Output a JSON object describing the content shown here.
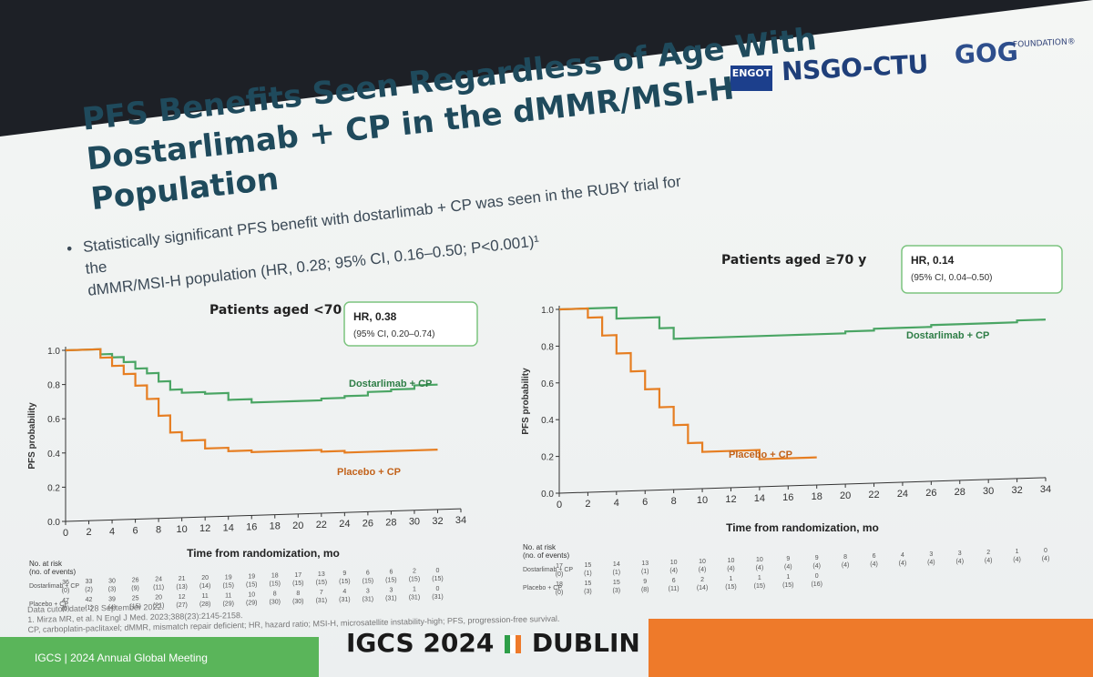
{
  "slide": {
    "title_line1": "PFS Benefits Seen Regardless of Age With",
    "title_line2": "Dostarlimab + CP in the dMMR/MSI-H Population",
    "bullet_line1": "Statistically significant PFS benefit with dostarlimab + CP was seen in the RUBY trial for the",
    "bullet_line2": "dMMR/MSI-H population (HR, 0.28; 95% CI, 0.16–0.50; P<0.001)¹",
    "logos": {
      "engot": "ENGOT",
      "nsgo": "NSGO-CTU",
      "gog": "GOG",
      "gog_sub": "FOUNDATION®"
    },
    "footnotes": [
      "Data cutoff date: 28 September 2022.",
      "1. Mirza MR, et al. N Engl J Med. 2023;388(23):2145-2158.",
      "CP, carboplatin-paclitaxel; dMMR, mismatch repair deficient; HR, hazard ratio; MSI-H, microsatellite instability-high; PFS, progression-free survival."
    ],
    "footer_left": "IGCS | 2024 Annual Global Meeting",
    "footer_mid": "IGCS 2024",
    "footer_mid2": "DUBLIN",
    "colors": {
      "dostarlimab": "#4aa564",
      "placebo": "#e67e22",
      "title": "#1f4a5c",
      "hr_box": "#7cc47f"
    }
  },
  "chart_data": [
    {
      "type": "line",
      "title": "Patients aged <70 y",
      "xlabel": "Time from randomization, mo",
      "ylabel": "PFS probability",
      "xlim": [
        0,
        34
      ],
      "ylim": [
        0,
        1.0
      ],
      "x_ticks": [
        "0",
        "2",
        "4",
        "6",
        "8",
        "10",
        "12",
        "14",
        "16",
        "18",
        "20",
        "22",
        "24",
        "26",
        "28",
        "30",
        "32",
        "34"
      ],
      "y_ticks": [
        "0.0",
        "0.2",
        "0.4",
        "0.6",
        "0.8",
        "1.0"
      ],
      "hr_text": "HR, 0.38",
      "ci_text": "(95% CI, 0.20–0.74)",
      "series": [
        {
          "name": "Dostarlimab + CP",
          "x": [
            0,
            2,
            3,
            4,
            5,
            6,
            7,
            8,
            9,
            10,
            12,
            14,
            16,
            18,
            20,
            22,
            24,
            26,
            28,
            30,
            32
          ],
          "y": [
            1.0,
            1.0,
            0.97,
            0.95,
            0.92,
            0.88,
            0.85,
            0.8,
            0.75,
            0.73,
            0.72,
            0.68,
            0.66,
            0.66,
            0.66,
            0.67,
            0.68,
            0.7,
            0.71,
            0.73,
            0.73
          ]
        },
        {
          "name": "Placebo + CP",
          "x": [
            0,
            2,
            3,
            4,
            5,
            6,
            7,
            8,
            9,
            10,
            12,
            14,
            16,
            18,
            20,
            22,
            24,
            26,
            28,
            30,
            32
          ],
          "y": [
            1.0,
            1.0,
            0.95,
            0.9,
            0.85,
            0.78,
            0.7,
            0.6,
            0.5,
            0.45,
            0.4,
            0.38,
            0.37,
            0.37,
            0.37,
            0.36,
            0.35,
            0.35,
            0.35,
            0.35,
            0.35
          ]
        }
      ],
      "risk_table": {
        "header1": "No. at risk",
        "header2": "(no. of events)",
        "rows": [
          {
            "name": "Dostarlimab + CP",
            "counts": [
              "36",
              "33",
              "30",
              "26",
              "24",
              "21",
              "20",
              "19",
              "19",
              "18",
              "17",
              "13",
              "9",
              "6",
              "6",
              "2",
              "0"
            ],
            "events": [
              "(0)",
              "(2)",
              "(3)",
              "(9)",
              "(11)",
              "(13)",
              "(14)",
              "(15)",
              "(15)",
              "(15)",
              "(15)",
              "(15)",
              "(15)",
              "(15)",
              "(15)",
              "(15)",
              "(15)"
            ]
          },
          {
            "name": "Placebo + CP",
            "counts": [
              "47",
              "42",
              "39",
              "25",
              "20",
              "12",
              "11",
              "11",
              "10",
              "8",
              "8",
              "7",
              "4",
              "3",
              "3",
              "1",
              "0"
            ],
            "events": [
              "(0)",
              "(1)",
              "(4)",
              "(15)",
              "(21)",
              "(27)",
              "(28)",
              "(29)",
              "(29)",
              "(30)",
              "(30)",
              "(31)",
              "(31)",
              "(31)",
              "(31)",
              "(31)",
              "(31)"
            ]
          }
        ]
      }
    },
    {
      "type": "line",
      "title": "Patients aged ≥70 y",
      "xlabel": "Time from randomization, mo",
      "ylabel": "PFS probability",
      "xlim": [
        0,
        34
      ],
      "ylim": [
        0,
        1.0
      ],
      "x_ticks": [
        "0",
        "2",
        "4",
        "6",
        "8",
        "10",
        "12",
        "14",
        "16",
        "18",
        "20",
        "22",
        "24",
        "26",
        "28",
        "30",
        "32",
        "34"
      ],
      "y_ticks": [
        "0.0",
        "0.2",
        "0.4",
        "0.6",
        "0.8",
        "1.0"
      ],
      "hr_text": "HR, 0.14",
      "ci_text": "(95% CI, 0.04–0.50)",
      "series": [
        {
          "name": "Dostarlimab + CP",
          "x": [
            0,
            2,
            4,
            6,
            7,
            8,
            10,
            12,
            14,
            16,
            18,
            20,
            22,
            24,
            26,
            28,
            30,
            32,
            34
          ],
          "y": [
            1.0,
            1.0,
            0.94,
            0.94,
            0.88,
            0.82,
            0.82,
            0.82,
            0.82,
            0.82,
            0.82,
            0.83,
            0.84,
            0.84,
            0.85,
            0.85,
            0.85,
            0.86,
            0.86
          ]
        },
        {
          "name": "Placebo + CP",
          "x": [
            0,
            2,
            3,
            4,
            5,
            6,
            7,
            8,
            9,
            10,
            12,
            14,
            16,
            18
          ],
          "y": [
            1.0,
            0.95,
            0.85,
            0.75,
            0.65,
            0.55,
            0.45,
            0.35,
            0.25,
            0.2,
            0.2,
            0.15,
            0.15,
            0.15
          ]
        }
      ],
      "risk_table": {
        "header1": "No. at risk",
        "header2": "(no. of events)",
        "rows": [
          {
            "name": "Dostarlimab + CP",
            "counts": [
              "17",
              "15",
              "14",
              "13",
              "10",
              "10",
              "10",
              "10",
              "9",
              "9",
              "8",
              "6",
              "4",
              "3",
              "3",
              "2",
              "1",
              "0"
            ],
            "events": [
              "(0)",
              "(1)",
              "(1)",
              "(1)",
              "(4)",
              "(4)",
              "(4)",
              "(4)",
              "(4)",
              "(4)",
              "(4)",
              "(4)",
              "(4)",
              "(4)",
              "(4)",
              "(4)",
              "(4)",
              "(4)"
            ]
          },
          {
            "name": "Placebo + CP",
            "counts": [
              "18",
              "15",
              "15",
              "9",
              "6",
              "2",
              "1",
              "1",
              "1",
              "0"
            ],
            "events": [
              "(0)",
              "(3)",
              "(3)",
              "(8)",
              "(11)",
              "(14)",
              "(15)",
              "(15)",
              "(15)",
              "(16)"
            ]
          }
        ]
      }
    }
  ]
}
